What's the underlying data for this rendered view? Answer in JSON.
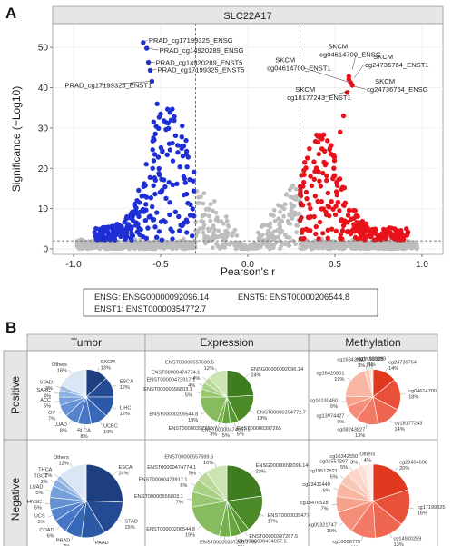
{
  "panel_a_label": "A",
  "panel_b_label": "B",
  "chart_data": [
    {
      "type": "scatter",
      "title": "SLC22A17",
      "xlabel": "Pearson's r",
      "ylabel": "Significance (−Log10)",
      "xlim": [
        -1.0,
        1.0
      ],
      "ylim": [
        0,
        55
      ],
      "xticks": [
        "-1.0",
        "-0.5",
        "0.0",
        "0.5",
        "1.0"
      ],
      "yticks": [
        "0",
        "10",
        "20",
        "30",
        "40",
        "50"
      ],
      "threshold_lines": {
        "x": [
          -0.3,
          0.3
        ],
        "y": 2
      },
      "colors": {
        "negative": "#1f2fd6",
        "positive": "#e8121b",
        "neutral": "#bdbdbd"
      },
      "annotations": [
        {
          "text": "PRAD_cg17199325_ENSG",
          "x": -0.6,
          "y": 51.2
        },
        {
          "text": "PRAD_cg14920289_ENSG",
          "x": -0.58,
          "y": 49.8
        },
        {
          "text": "PRAD_cg14920289_ENST5",
          "x": -0.57,
          "y": 46.3
        },
        {
          "text": "PRAD_cg17199325_ENST5",
          "x": -0.56,
          "y": 44.3
        },
        {
          "text": "PRAD_cg17199325_ENST1",
          "x": -0.55,
          "y": 41.6
        },
        {
          "text": "SKCM cg04614700_ENSG",
          "x": 0.6,
          "y": 44.5
        },
        {
          "text": "SKCM cg24736764_ENST1",
          "x": 0.61,
          "y": 42.4
        },
        {
          "text": "SKCM cg04614700_ENST1",
          "x": 0.6,
          "y": 41.1
        },
        {
          "text": "SKCM cg24736764_ENSG",
          "x": 0.61,
          "y": 40.3
        },
        {
          "text": "SKCM cg18177243_ENST1",
          "x": 0.59,
          "y": 39.2
        }
      ],
      "legend_lines": [
        "ENSG: ENSG00000092096.14",
        "ENST5: ENST00000206544.8",
        "ENST1: ENST00000354772.7"
      ]
    },
    {
      "type": "pie",
      "grid_columns": [
        "Tumor",
        "Expression",
        "Methylation"
      ],
      "grid_rows": [
        "Positive",
        "Negative"
      ],
      "pies": [
        {
          "row": "Positive",
          "column": "Tumor",
          "labels": [
            "SKCM 13%",
            "ESCA 12%",
            "LIHC 12%",
            "UCEC 10%",
            "BLCA 8%",
            "LUAD 8%",
            "OV 7%",
            "ACC 5%",
            "SARC 4%",
            "STAD 3%",
            "Others 18%"
          ],
          "values": [
            13,
            12,
            12,
            10,
            8,
            8,
            7,
            5,
            4,
            3,
            18
          ]
        },
        {
          "row": "Positive",
          "column": "Expression",
          "labels": [
            "ENSG00000092096.14 24%",
            "ENST00000354772.7 19%",
            "ENST00000397265 5%",
            "ENST00000474057.5 5%",
            "ENST00000397260.7 3%",
            "ENST00000206544.8 19%",
            "ENST00000556803.1 5%",
            "ENST00000473917.1 4%",
            "ENST00000474774.1 4%",
            "ENST00000557699.5 12%"
          ],
          "values": [
            24,
            19,
            5,
            5,
            3,
            19,
            5,
            4,
            4,
            12
          ]
        },
        {
          "row": "Positive",
          "column": "Methylation",
          "labels": [
            "cg24736764 14%",
            "cg04614700 18%",
            "cg18177243 14%",
            "cg08243827 13%",
            "cg13974427 9%",
            "cg10130460 6%",
            "cg16420801 19%",
            "cg16342550 3%",
            "cg17199325 1%",
            "cg14920289 1%"
          ],
          "values": [
            14,
            18,
            14,
            13,
            9,
            6,
            19,
            3,
            1,
            1
          ]
        },
        {
          "row": "Negative",
          "column": "Tumor",
          "labels": [
            "ESCA 24%",
            "STAD 15%",
            "PAAD 10%",
            "PRAD 7%",
            "COAD 6%",
            "UCS 5%",
            "HNSC 5%",
            "LUAD 5%",
            "TGCT 3%",
            "THCA 2%",
            "Others 12%"
          ],
          "values": [
            24,
            15,
            10,
            7,
            6,
            5,
            5,
            5,
            3,
            2,
            12
          ]
        },
        {
          "row": "Negative",
          "column": "Expression",
          "labels": [
            "ENSG00000092096.14 23%",
            "ENST00000354772.7 17%",
            "ENST00000397267.5 4%",
            "ENST00000474057.5 5%",
            "ENST00000397260.7 5%",
            "ENST00000206544.8 19%",
            "ENST00000556803.1 7%",
            "ENST00000473917.1 6%",
            "ENST00000474774.1 5%",
            "ENST00000557699.5 10%"
          ],
          "values": [
            23,
            17,
            4,
            5,
            5,
            19,
            7,
            6,
            5,
            10
          ]
        },
        {
          "row": "Negative",
          "column": "Methylation",
          "labels": [
            "cg23464698 20%",
            "cg17199325 16%",
            "cg14920289 13%",
            "cg10058779 11%",
            "cg09321747 10%",
            "cg15476528 7%",
            "cg23411440 6%",
            "cg19512521 5%",
            "cg01557297 5%",
            "cg16342550 3%",
            "Others 4%"
          ],
          "values": [
            20,
            16,
            13,
            11,
            10,
            7,
            6,
            5,
            5,
            3,
            4
          ]
        }
      ],
      "palettes": {
        "Tumor": [
          "#1d3f7f",
          "#234a92",
          "#2c58a8",
          "#3767b8",
          "#4676c4",
          "#5584cc",
          "#6491d3",
          "#76a0da",
          "#8aaedf",
          "#9cbbe5",
          "#dbe6f4"
        ],
        "Expression": [
          "#3f7c1f",
          "#4b8a27",
          "#589832",
          "#65a53d",
          "#74b04b",
          "#86bc5e",
          "#98c770",
          "#a9d184",
          "#bad999",
          "#cce3b2"
        ],
        "Methylation": [
          "#e0391f",
          "#e9503a",
          "#ef6650",
          "#f27a64",
          "#f48e78",
          "#f6a28d",
          "#f8b6a3",
          "#f9c7b7",
          "#fad5c8",
          "#fbe0d6",
          "#fdeee8"
        ]
      }
    }
  ]
}
